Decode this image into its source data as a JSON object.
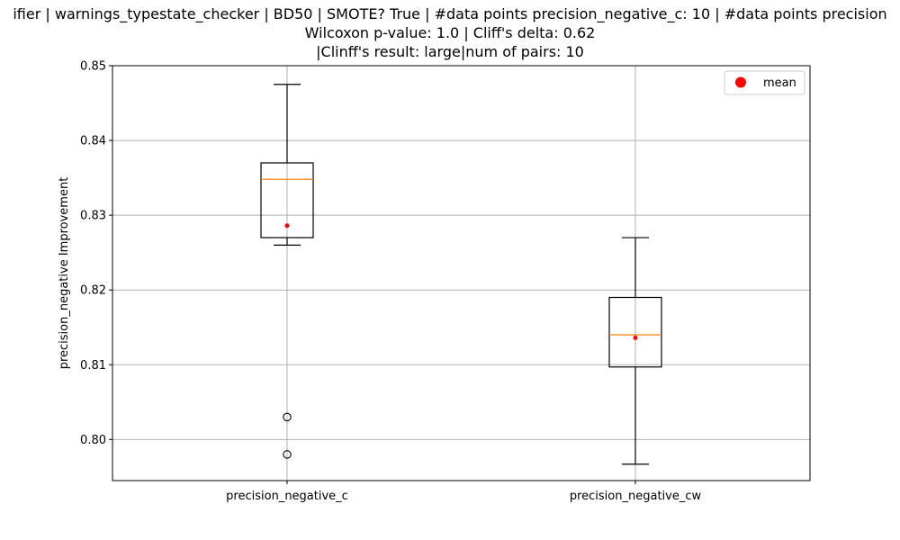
{
  "chart_data": {
    "type": "box",
    "title_lines": [
      "ifier | warnings_typestate_checker | BD50 | SMOTE? True | #data points precision_negative_c: 10 | #data points precision",
      "Wilcoxon p-value: 1.0 | Cliff's delta: 0.62",
      "|Clinff's result: large|num of pairs: 10"
    ],
    "ylabel": "precision_negative Improvement",
    "xlabel": "",
    "ylim": [
      0.7945,
      0.85
    ],
    "yticks": [
      0.8,
      0.81,
      0.82,
      0.83,
      0.84,
      0.85
    ],
    "ytick_labels": [
      "0.80",
      "0.81",
      "0.82",
      "0.83",
      "0.84",
      "0.85"
    ],
    "grid": true,
    "legend": {
      "position": "top-right",
      "entries": [
        {
          "label": "mean",
          "color": "#ff0000",
          "marker": "circle"
        }
      ]
    },
    "colors": {
      "median": "#ff7f0e",
      "mean": "#ff0000",
      "box": "#000000",
      "grid": "#b0b0b0"
    },
    "boxes": [
      {
        "category": "precision_negative_c",
        "whisker_low": 0.826,
        "q1": 0.827,
        "median": 0.8348,
        "q3": 0.837,
        "whisker_high": 0.8475,
        "mean": 0.8286,
        "outliers": [
          0.803,
          0.798
        ]
      },
      {
        "category": "precision_negative_cw",
        "whisker_low": 0.7967,
        "q1": 0.8097,
        "median": 0.814,
        "q3": 0.819,
        "whisker_high": 0.827,
        "mean": 0.8136,
        "outliers": []
      }
    ]
  }
}
